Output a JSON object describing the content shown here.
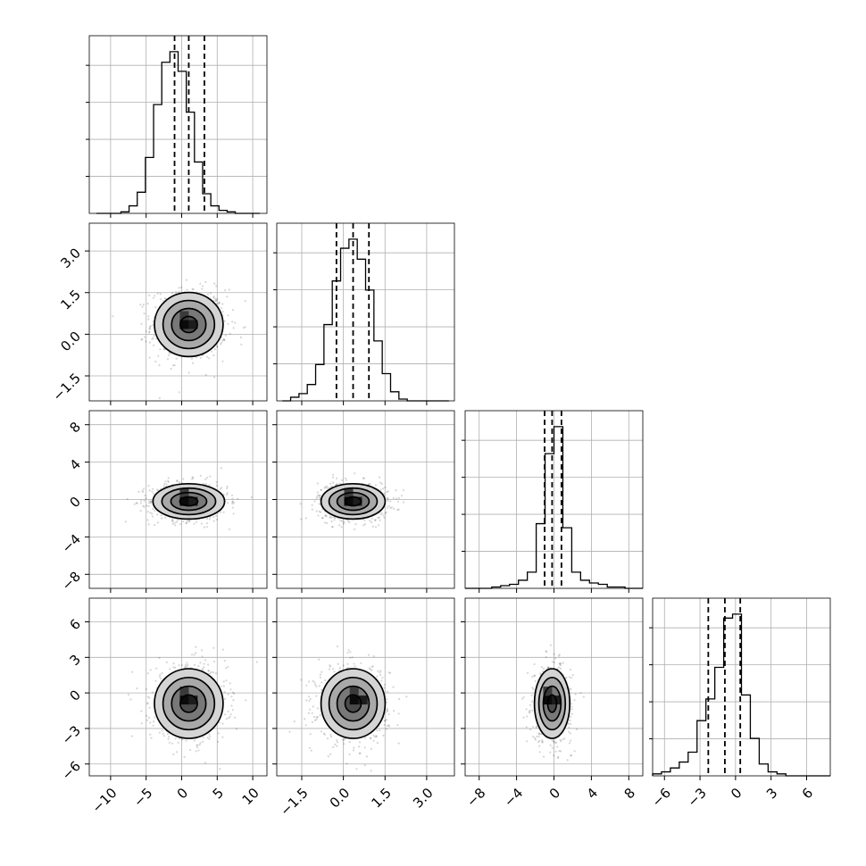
{
  "chart_data": {
    "type": "corner",
    "title": "",
    "grid": true,
    "parameters": [
      {
        "index": 0,
        "range": [
          -13,
          12
        ],
        "ticks": [
          -10,
          -5,
          0,
          5,
          10
        ],
        "tick_labels": [
          "−10",
          "−5",
          "0",
          "5",
          "10"
        ],
        "hist_range": [
          -12,
          11
        ],
        "hist_counts": [
          0,
          0,
          0,
          1,
          5,
          14,
          37,
          72,
          100,
          107,
          94,
          67,
          34,
          13,
          5,
          2,
          1,
          0,
          0,
          0
        ],
        "quantiles": [
          -1.0,
          1.0,
          3.2
        ]
      },
      {
        "index": 1,
        "range": [
          -2.4,
          4.0
        ],
        "ticks": [
          -1.5,
          0.0,
          1.5,
          3.0
        ],
        "tick_labels": [
          "−1.5",
          "0.0",
          "1.5",
          "3.0"
        ],
        "hist_range": [
          -2.2,
          3.8
        ],
        "hist_counts": [
          0,
          2,
          4,
          9,
          20,
          42,
          66,
          84,
          89,
          78,
          61,
          33,
          15,
          5,
          1,
          0,
          0,
          0,
          0,
          0
        ],
        "quantiles": [
          -0.25,
          0.35,
          0.92
        ]
      },
      {
        "index": 2,
        "range": [
          -9.5,
          9.5
        ],
        "ticks": [
          -8,
          -4,
          0,
          4,
          8
        ],
        "tick_labels": [
          "−8",
          "−4",
          "0",
          "4",
          "8"
        ],
        "hist_range": [
          -9.5,
          9.5
        ],
        "hist_counts": [
          0,
          0,
          0,
          1,
          2,
          3,
          6,
          12,
          48,
          100,
          120,
          45,
          12,
          6,
          4,
          3,
          1,
          1,
          0,
          0
        ],
        "quantiles": [
          -1.0,
          -0.2,
          0.8
        ]
      },
      {
        "index": 3,
        "range": [
          -7,
          8
        ],
        "ticks": [
          -6,
          -3,
          0,
          3,
          6
        ],
        "tick_labels": [
          "−6",
          "−3",
          "0",
          "3",
          "6"
        ],
        "hist_range": [
          -7,
          8
        ],
        "hist_counts": [
          1,
          2,
          4,
          7,
          12,
          28,
          39,
          55,
          80,
          82,
          41,
          19,
          6,
          2,
          1,
          0,
          0,
          0,
          0,
          0
        ],
        "quantiles": [
          -2.3,
          -0.9,
          0.4
        ]
      }
    ],
    "pairs": [
      {
        "x": 0,
        "y": 1,
        "center": [
          1.0,
          0.35
        ],
        "sigma": [
          2.3,
          0.55
        ],
        "core_cell": [
          1.0,
          0.35
        ]
      },
      {
        "x": 0,
        "y": 2,
        "center": [
          1.0,
          -0.2
        ],
        "sigma": [
          2.4,
          0.9
        ],
        "core_cell": [
          1.0,
          -0.2
        ]
      },
      {
        "x": 1,
        "y": 2,
        "center": [
          0.35,
          -0.2
        ],
        "sigma": [
          0.55,
          0.9
        ],
        "core_cell": [
          0.35,
          -0.2
        ]
      },
      {
        "x": 0,
        "y": 3,
        "center": [
          1.0,
          -0.9
        ],
        "sigma": [
          2.3,
          1.4
        ],
        "core_cell": [
          1.0,
          -0.6
        ]
      },
      {
        "x": 1,
        "y": 3,
        "center": [
          0.35,
          -0.9
        ],
        "sigma": [
          0.55,
          1.4
        ],
        "core_cell": [
          0.55,
          -0.6
        ]
      },
      {
        "x": 2,
        "y": 3,
        "center": [
          -0.2,
          -0.9
        ],
        "sigma": [
          0.9,
          1.4
        ],
        "core_cell": [
          -0.2,
          -0.6
        ]
      }
    ],
    "contour_levels": [
      0.5,
      1.0,
      1.5,
      2.0
    ]
  }
}
